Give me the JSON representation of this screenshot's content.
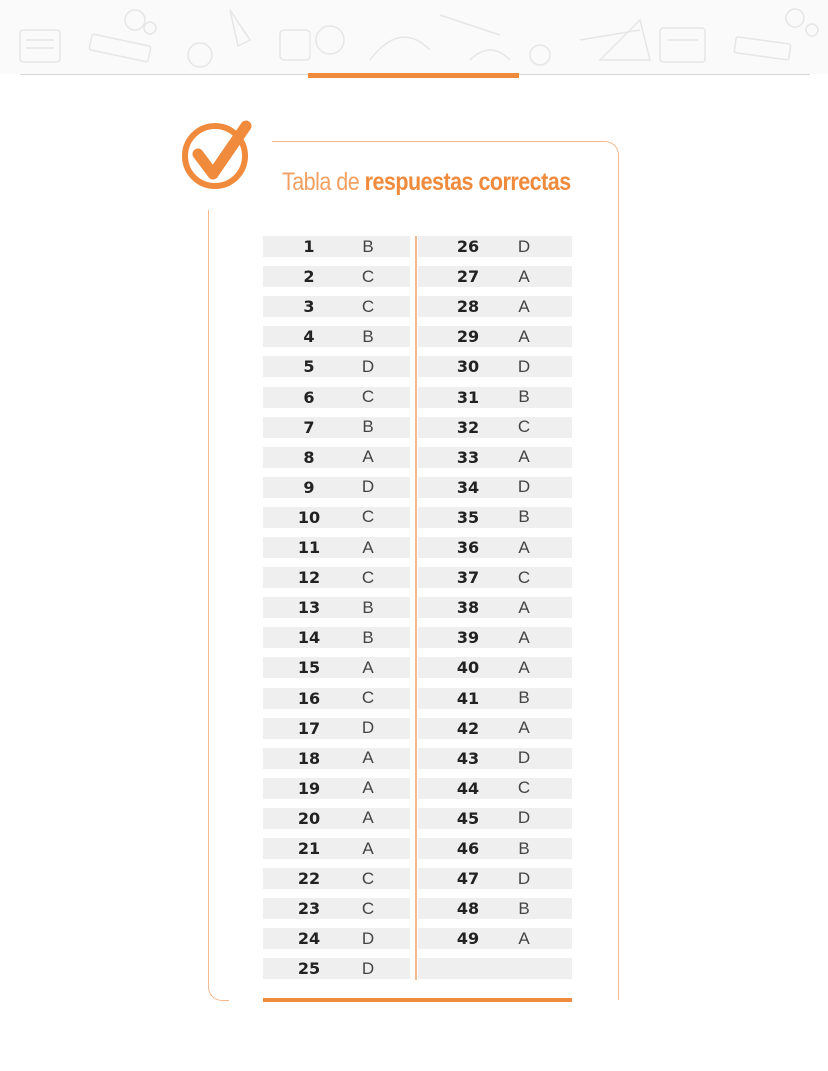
{
  "title": {
    "light": "Tabla de ",
    "bold": "respuestas correctas"
  },
  "colors": {
    "accent": "#f08a3c",
    "border": "#f3b98c",
    "row_bg": "#efefef"
  },
  "icons": {
    "badge": "check-circle-icon"
  },
  "answers": [
    {
      "n": "1",
      "a": "B"
    },
    {
      "n": "2",
      "a": "C"
    },
    {
      "n": "3",
      "a": "C"
    },
    {
      "n": "4",
      "a": "B"
    },
    {
      "n": "5",
      "a": "D"
    },
    {
      "n": "6",
      "a": "C"
    },
    {
      "n": "7",
      "a": "B"
    },
    {
      "n": "8",
      "a": "A"
    },
    {
      "n": "9",
      "a": "D"
    },
    {
      "n": "10",
      "a": "C"
    },
    {
      "n": "11",
      "a": "A"
    },
    {
      "n": "12",
      "a": "C"
    },
    {
      "n": "13",
      "a": "B"
    },
    {
      "n": "14",
      "a": "B"
    },
    {
      "n": "15",
      "a": "A"
    },
    {
      "n": "16",
      "a": "C"
    },
    {
      "n": "17",
      "a": "D"
    },
    {
      "n": "18",
      "a": "A"
    },
    {
      "n": "19",
      "a": "A"
    },
    {
      "n": "20",
      "a": "A"
    },
    {
      "n": "21",
      "a": "A"
    },
    {
      "n": "22",
      "a": "C"
    },
    {
      "n": "23",
      "a": "C"
    },
    {
      "n": "24",
      "a": "D"
    },
    {
      "n": "25",
      "a": "D"
    },
    {
      "n": "26",
      "a": "D"
    },
    {
      "n": "27",
      "a": "A"
    },
    {
      "n": "28",
      "a": "A"
    },
    {
      "n": "29",
      "a": "A"
    },
    {
      "n": "30",
      "a": "D"
    },
    {
      "n": "31",
      "a": "B"
    },
    {
      "n": "32",
      "a": "C"
    },
    {
      "n": "33",
      "a": "A"
    },
    {
      "n": "34",
      "a": "D"
    },
    {
      "n": "35",
      "a": "B"
    },
    {
      "n": "36",
      "a": "A"
    },
    {
      "n": "37",
      "a": "C"
    },
    {
      "n": "38",
      "a": "A"
    },
    {
      "n": "39",
      "a": "A"
    },
    {
      "n": "40",
      "a": "A"
    },
    {
      "n": "41",
      "a": "B"
    },
    {
      "n": "42",
      "a": "A"
    },
    {
      "n": "43",
      "a": "D"
    },
    {
      "n": "44",
      "a": "C"
    },
    {
      "n": "45",
      "a": "D"
    },
    {
      "n": "46",
      "a": "B"
    },
    {
      "n": "47",
      "a": "D"
    },
    {
      "n": "48",
      "a": "B"
    },
    {
      "n": "49",
      "a": "A"
    }
  ]
}
